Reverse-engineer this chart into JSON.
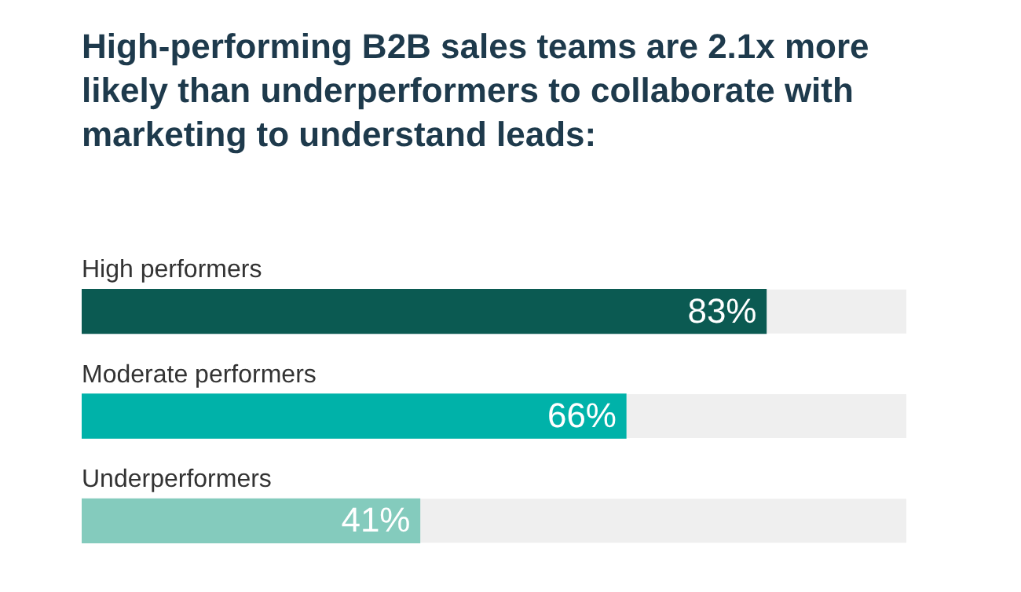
{
  "chart_data": {
    "type": "bar",
    "orientation": "horizontal",
    "title": "High-performing B2B sales teams are 2.1x more likely than underperformers to collaborate with marketing to understand leads:",
    "categories": [
      "High performers",
      "Moderate performers",
      "Underperformers"
    ],
    "values": [
      83,
      66,
      41
    ],
    "colors": [
      "#0b5a52",
      "#00b2a9",
      "#84cbbd"
    ],
    "value_labels": [
      "83%",
      "66%",
      "41%"
    ],
    "xlim": [
      0,
      100
    ],
    "tick_labels": false,
    "grid": false,
    "legend": false
  }
}
